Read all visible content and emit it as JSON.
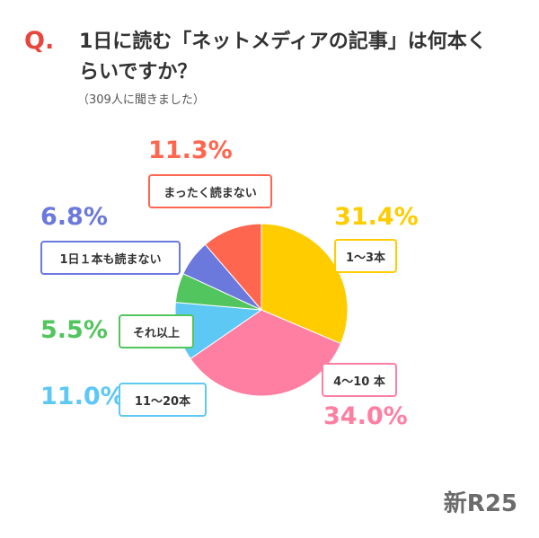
{
  "question_mark": "Q.",
  "title": "1日に読む「ネットメディアの記事」は何本くらいですか？",
  "subtitle": "（309人に聞きました）",
  "brand": "新R25",
  "chart_data": {
    "type": "pie",
    "slices": [
      {
        "label": "1〜3本",
        "value": 31.4,
        "display": "31.4%",
        "color": "#ffcc00"
      },
      {
        "label": "4〜10 本",
        "value": 34.0,
        "display": "34.0%",
        "color": "#ff7fa3"
      },
      {
        "label": "11〜20本",
        "value": 11.0,
        "display": "11.0%",
        "color": "#5ec8f5"
      },
      {
        "label": "それ以上",
        "value": 5.5,
        "display": "5.5%",
        "color": "#52c55e"
      },
      {
        "label": "1日１本も読まない",
        "value": 6.8,
        "display": "6.8%",
        "color": "#6b78dc"
      },
      {
        "label": "まったく読まない",
        "value": 11.3,
        "display": "11.3%",
        "color": "#ff6650"
      }
    ]
  }
}
